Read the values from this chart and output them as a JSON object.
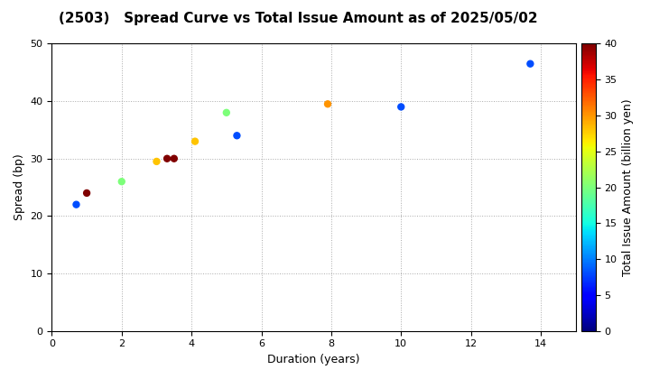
{
  "title": "(2503)   Spread Curve vs Total Issue Amount as of 2025/05/02",
  "xlabel": "Duration (years)",
  "ylabel": "Spread (bp)",
  "colorbar_label": "Total Issue Amount (billion yen)",
  "xlim": [
    0,
    15
  ],
  "ylim": [
    0,
    50
  ],
  "xticks": [
    0,
    2,
    4,
    6,
    8,
    10,
    12,
    14
  ],
  "yticks": [
    0,
    10,
    20,
    30,
    40,
    50
  ],
  "colorbar_min": 0,
  "colorbar_max": 40,
  "colorbar_ticks": [
    0,
    5,
    10,
    15,
    20,
    25,
    30,
    35,
    40
  ],
  "points": [
    {
      "duration": 0.7,
      "spread": 22,
      "amount": 8
    },
    {
      "duration": 1.0,
      "spread": 24,
      "amount": 40
    },
    {
      "duration": 2.0,
      "spread": 26,
      "amount": 20
    },
    {
      "duration": 3.0,
      "spread": 29.5,
      "amount": 28
    },
    {
      "duration": 3.3,
      "spread": 30,
      "amount": 40
    },
    {
      "duration": 3.5,
      "spread": 30,
      "amount": 40
    },
    {
      "duration": 4.1,
      "spread": 33,
      "amount": 28
    },
    {
      "duration": 5.0,
      "spread": 38,
      "amount": 20
    },
    {
      "duration": 5.3,
      "spread": 34,
      "amount": 8
    },
    {
      "duration": 7.9,
      "spread": 39.5,
      "amount": 30
    },
    {
      "duration": 10.0,
      "spread": 39,
      "amount": 8
    },
    {
      "duration": 13.7,
      "spread": 46.5,
      "amount": 8
    }
  ],
  "marker_size": 25,
  "background_color": "#ffffff",
  "grid_color": "#aaaaaa",
  "cmap": "jet",
  "title_fontsize": 11,
  "axis_fontsize": 9,
  "tick_fontsize": 8
}
